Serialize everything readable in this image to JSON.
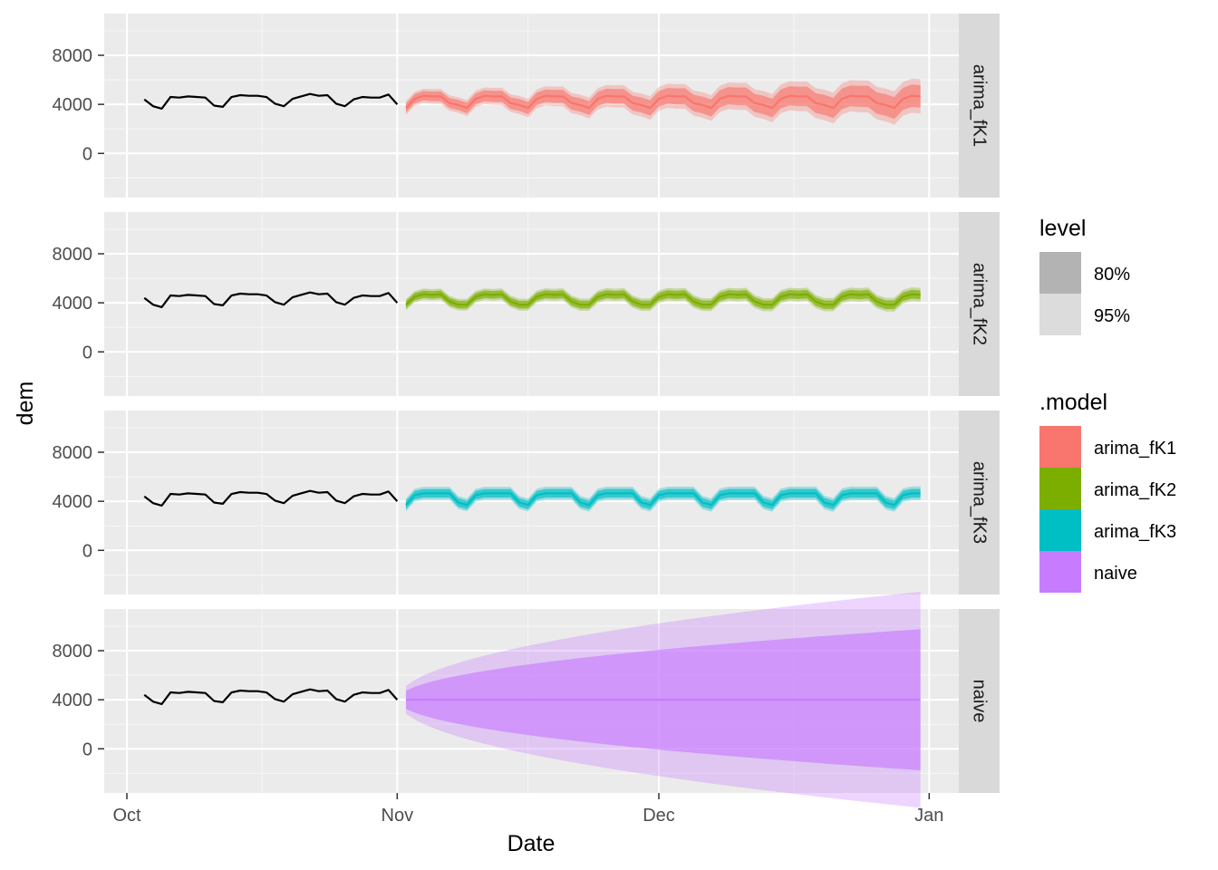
{
  "chart_data": {
    "type": "line",
    "title": "",
    "xlabel": "Date",
    "ylabel": "dem",
    "x_ticks": [
      {
        "label": "Oct",
        "day": 0
      },
      {
        "label": "Nov",
        "day": 31
      },
      {
        "label": "Dec",
        "day": 61
      },
      {
        "label": "Jan",
        "day": 92
      }
    ],
    "x_range_days": [
      -2.6,
      95.4
    ],
    "y_ticks": [
      0,
      4000,
      8000
    ],
    "y_range": [
      -3600,
      11400
    ],
    "history": {
      "start_day": 2,
      "values": [
        4400,
        3850,
        3650,
        4600,
        4550,
        4650,
        4600,
        4550,
        3900,
        3800,
        4600,
        4750,
        4700,
        4700,
        4600,
        4050,
        3850,
        4450,
        4650,
        4850,
        4700,
        4750,
        4050,
        3850,
        4400,
        4600,
        4550,
        4550,
        4800,
        4000
      ]
    },
    "forecast": {
      "start_day": 32,
      "horizon_days": 60
    },
    "series": [
      {
        "name": "arima_fK1",
        "color": "#F8766D",
        "kind": "weekly",
        "pattern": [
          3700,
          4450,
          4700,
          4650,
          4650,
          4100,
          3950
        ],
        "w80_start": 360,
        "w80_end": 920,
        "w95_start": 550,
        "w95_end": 1400
      },
      {
        "name": "arima_fK2",
        "color": "#7CAE00",
        "kind": "weekly",
        "pattern": [
          3850,
          4500,
          4700,
          4650,
          4700,
          4100,
          3850
        ],
        "w80_start": 300,
        "w80_end": 360,
        "w95_start": 460,
        "w95_end": 560
      },
      {
        "name": "arima_fK3",
        "color": "#00BFC4",
        "kind": "weekly",
        "pattern": [
          3700,
          4500,
          4650,
          4650,
          4650,
          4650,
          3900
        ],
        "w80_start": 340,
        "w80_end": 360,
        "w95_start": 520,
        "w95_end": 560
      },
      {
        "name": "naive",
        "color": "#C77CFF",
        "kind": "naive",
        "level": 4000,
        "sd1": 580,
        "z80": 1.28,
        "z95": 1.96
      }
    ],
    "legend": {
      "level_title": "level",
      "levels": [
        {
          "label": "80%",
          "color": "#b3b3b3"
        },
        {
          "label": "95%",
          "color": "#dcdcdc"
        }
      ],
      "model_title": ".model",
      "models": [
        {
          "label": "arima_fK1",
          "color": "#F8766D"
        },
        {
          "label": "arima_fK2",
          "color": "#7CAE00"
        },
        {
          "label": "arima_fK3",
          "color": "#00BFC4"
        },
        {
          "label": "naive",
          "color": "#C77CFF"
        }
      ]
    }
  }
}
